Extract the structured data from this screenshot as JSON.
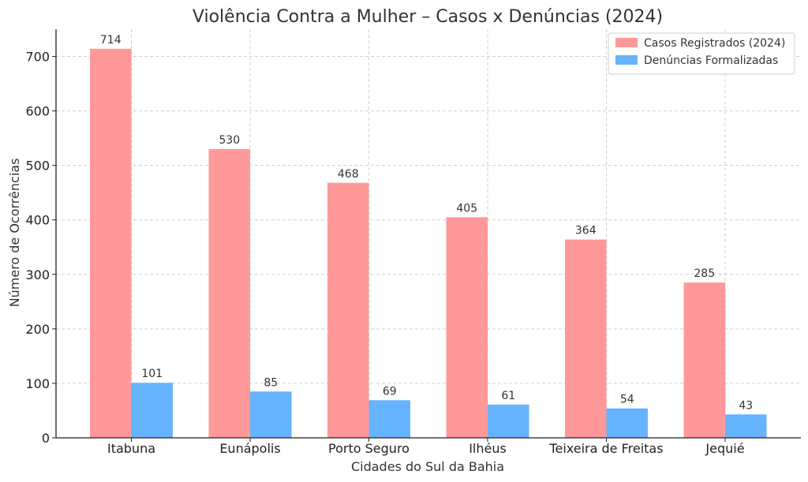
{
  "chart_data": {
    "type": "bar",
    "title": "Violência Contra a Mulher – Casos x Denúncias (2024)",
    "xlabel": "Cidades do Sul da Bahia",
    "ylabel": "Número de Ocorrências",
    "categories": [
      "Itabuna",
      "Eunápolis",
      "Porto Seguro",
      "Ilhéus",
      "Teixeira de Freitas",
      "Jequié"
    ],
    "series": [
      {
        "name": "Casos Registrados (2024)",
        "color": "#ff9999",
        "values": [
          714,
          530,
          468,
          405,
          364,
          285
        ]
      },
      {
        "name": "Denúncias Formalizadas",
        "color": "#66b3ff",
        "values": [
          101,
          85,
          69,
          61,
          54,
          43
        ]
      }
    ],
    "ylim": [
      0,
      750
    ],
    "yticks": [
      0,
      100,
      200,
      300,
      400,
      500,
      600,
      700
    ],
    "grid": true,
    "legend_position": "top-right"
  }
}
